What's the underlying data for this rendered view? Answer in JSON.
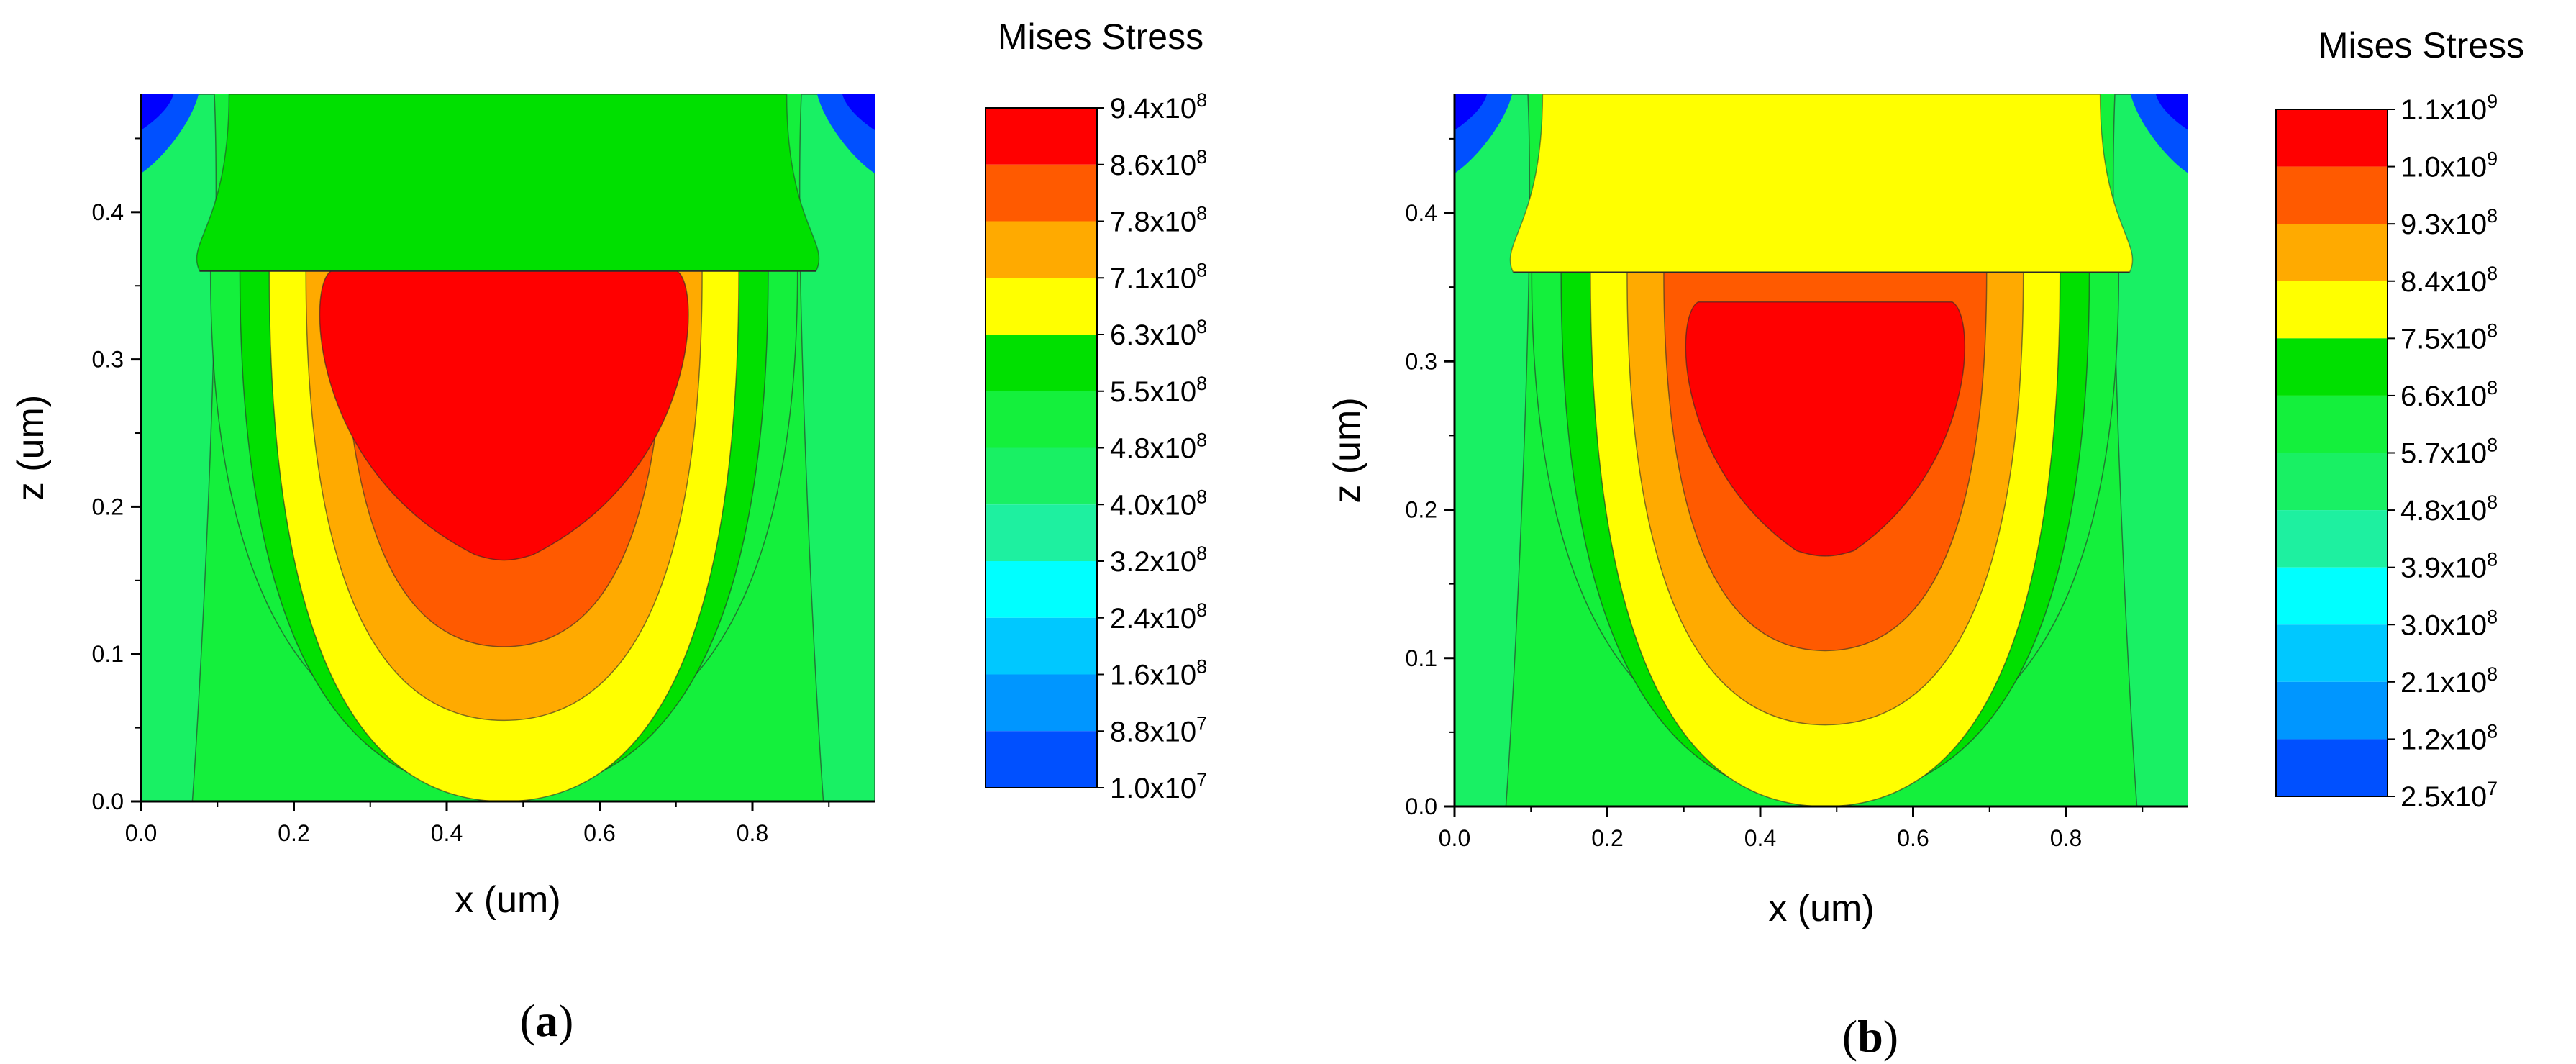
{
  "chart_data": [
    {
      "type": "heatmap",
      "panel_label": "(a)",
      "caption_letter": "a",
      "xlabel": "x (um)",
      "ylabel": "z (um)",
      "xlim": [
        0,
        0.96
      ],
      "ylim": [
        0,
        0.48
      ],
      "xticks": [
        "0.0",
        "0.2",
        "0.4",
        "0.6",
        "0.8"
      ],
      "yticks": [
        "0.0",
        "0.1",
        "0.2",
        "0.3",
        "0.4"
      ],
      "colorbar_title": "Mises Stress",
      "colorbar_levels": [
        {
          "mant": "9.4x10",
          "exp": "8"
        },
        {
          "mant": "8.6x10",
          "exp": "8"
        },
        {
          "mant": "7.8x10",
          "exp": "8"
        },
        {
          "mant": "7.1x10",
          "exp": "8"
        },
        {
          "mant": "6.3x10",
          "exp": "8"
        },
        {
          "mant": "5.5x10",
          "exp": "8"
        },
        {
          "mant": "4.8x10",
          "exp": "8"
        },
        {
          "mant": "4.0x10",
          "exp": "8"
        },
        {
          "mant": "3.2x10",
          "exp": "8"
        },
        {
          "mant": "2.4x10",
          "exp": "8"
        },
        {
          "mant": "1.6x10",
          "exp": "8"
        },
        {
          "mant": "8.8x10",
          "exp": "7"
        },
        {
          "mant": "1.0x10",
          "exp": "7"
        }
      ],
      "colorbar_colors": [
        "#ff0000",
        "#ff5a00",
        "#ffaa00",
        "#ffff00",
        "#00e000",
        "#14f03c",
        "#19f064",
        "#1ef0a0",
        "#00ffff",
        "#00c8ff",
        "#0096ff",
        "#0050ff",
        "#0000ff"
      ],
      "layer_interface_z": 0.36,
      "red_core": {
        "x_range": [
          0.23,
          0.72
        ],
        "z_range": [
          0.165,
          0.36
        ]
      }
    },
    {
      "type": "heatmap",
      "panel_label": "(b)",
      "caption_letter": "b",
      "xlabel": "x (um)",
      "ylabel": "z (um)",
      "xlim": [
        0,
        0.96
      ],
      "ylim": [
        0,
        0.48
      ],
      "xticks": [
        "0.0",
        "0.2",
        "0.4",
        "0.6",
        "0.8"
      ],
      "yticks": [
        "0.0",
        "0.1",
        "0.2",
        "0.3",
        "0.4"
      ],
      "colorbar_title": "Mises Stress",
      "colorbar_levels": [
        {
          "mant": "1.1x10",
          "exp": "9"
        },
        {
          "mant": "1.0x10",
          "exp": "9"
        },
        {
          "mant": "9.3x10",
          "exp": "8"
        },
        {
          "mant": "8.4x10",
          "exp": "8"
        },
        {
          "mant": "7.5x10",
          "exp": "8"
        },
        {
          "mant": "6.6x10",
          "exp": "8"
        },
        {
          "mant": "5.7x10",
          "exp": "8"
        },
        {
          "mant": "4.8x10",
          "exp": "8"
        },
        {
          "mant": "3.9x10",
          "exp": "8"
        },
        {
          "mant": "3.0x10",
          "exp": "8"
        },
        {
          "mant": "2.1x10",
          "exp": "8"
        },
        {
          "mant": "1.2x10",
          "exp": "8"
        },
        {
          "mant": "2.5x10",
          "exp": "7"
        }
      ],
      "colorbar_colors": [
        "#ff0000",
        "#ff5a00",
        "#ffaa00",
        "#ffff00",
        "#00e000",
        "#14f03c",
        "#19f064",
        "#1ef0a0",
        "#00ffff",
        "#00c8ff",
        "#0096ff",
        "#0050ff",
        "#0000ff"
      ],
      "layer_interface_z": 0.36,
      "red_core": {
        "x_range": [
          0.3,
          0.67
        ],
        "z_range": [
          0.17,
          0.34
        ]
      }
    }
  ]
}
